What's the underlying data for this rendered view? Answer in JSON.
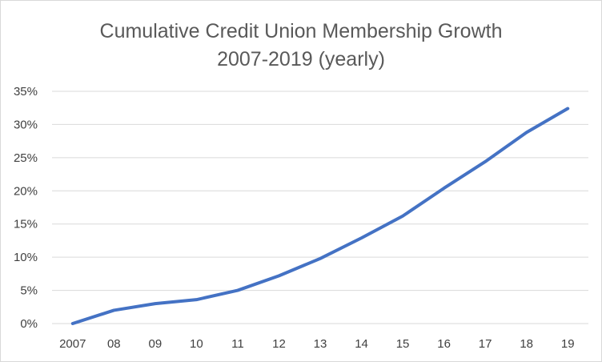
{
  "chart_data": {
    "type": "line",
    "title": "Cumulative Credit Union Membership Growth",
    "subtitle": "2007-2019 (yearly)",
    "xlabel": "",
    "ylabel": "",
    "categories": [
      "2007",
      "08",
      "09",
      "10",
      "11",
      "12",
      "13",
      "14",
      "15",
      "16",
      "17",
      "18",
      "19"
    ],
    "series": [
      {
        "values": [
          0.0,
          2.0,
          3.0,
          3.6,
          5.0,
          7.2,
          9.8,
          12.9,
          16.2,
          20.4,
          24.4,
          28.8,
          32.4
        ]
      }
    ],
    "y_ticks": [
      "0%",
      "5%",
      "10%",
      "15%",
      "20%",
      "25%",
      "30%",
      "35%"
    ],
    "ylim": [
      0,
      35
    ],
    "y_unit": "%",
    "grid": true,
    "legend": "none",
    "colors": {
      "line": "#4472C4",
      "grid": "#d9d9d9",
      "text": "#595959"
    }
  }
}
